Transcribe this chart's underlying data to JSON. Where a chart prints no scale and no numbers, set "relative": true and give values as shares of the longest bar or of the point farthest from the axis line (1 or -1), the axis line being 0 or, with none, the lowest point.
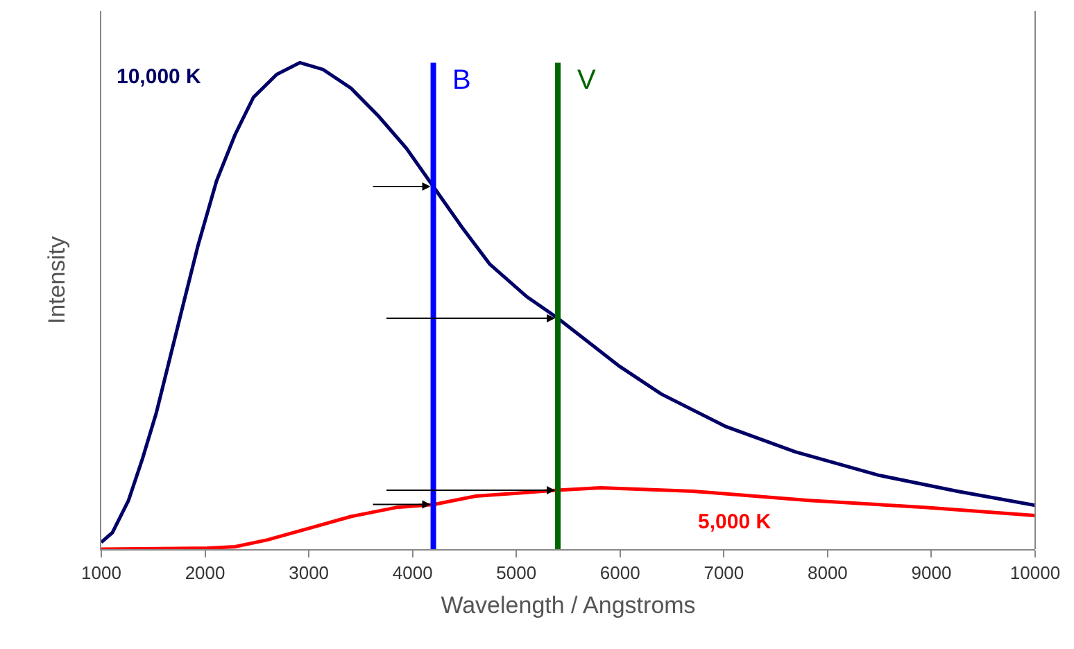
{
  "chart_data": {
    "type": "line",
    "relative": true,
    "xlabel": "Wavelength / Angstroms",
    "ylabel": "Intensity",
    "xlim": [
      1000,
      10000
    ],
    "xticks": [
      1000,
      2000,
      3000,
      4000,
      5000,
      6000,
      7000,
      8000,
      9000,
      10000
    ],
    "grid": false,
    "legend": false,
    "marker": "none",
    "line_style": "solid",
    "series": [
      {
        "name": "10,000 K",
        "color": "#000066",
        "x": [
          1000,
          1107,
          1262,
          1397,
          1530,
          1664,
          1798,
          1932,
          2111,
          2289,
          2467,
          2691,
          2914,
          3137,
          3404,
          3672,
          3940,
          4208,
          4475,
          4743,
          5100,
          5391,
          5993,
          6395,
          7019,
          7688,
          8491,
          9250,
          10000
        ],
        "values": [
          0.014,
          0.034,
          0.1,
          0.186,
          0.28,
          0.395,
          0.51,
          0.624,
          0.757,
          0.852,
          0.929,
          0.976,
          1,
          0.986,
          0.948,
          0.89,
          0.824,
          0.743,
          0.662,
          0.586,
          0.519,
          0.476,
          0.376,
          0.319,
          0.252,
          0.2,
          0.152,
          0.119,
          0.09
        ]
      },
      {
        "name": "5,000 K",
        "color": "#ff0000",
        "x": [
          1000,
          2021,
          2289,
          2601,
          3003,
          3404,
          3851,
          4208,
          4609,
          5391,
          5814,
          6707,
          7822,
          8938,
          10000
        ],
        "values": [
          0,
          0.002,
          0.005,
          0.019,
          0.043,
          0.067,
          0.086,
          0.092,
          0.109,
          0.121,
          0.126,
          0.119,
          0.1,
          0.086,
          0.069
        ]
      }
    ],
    "ref_lines": [
      {
        "axis": "x",
        "value": 4200,
        "label": "B",
        "color": "#0000ff"
      },
      {
        "axis": "x",
        "value": 5400,
        "label": "V",
        "color": "#006400"
      }
    ]
  }
}
